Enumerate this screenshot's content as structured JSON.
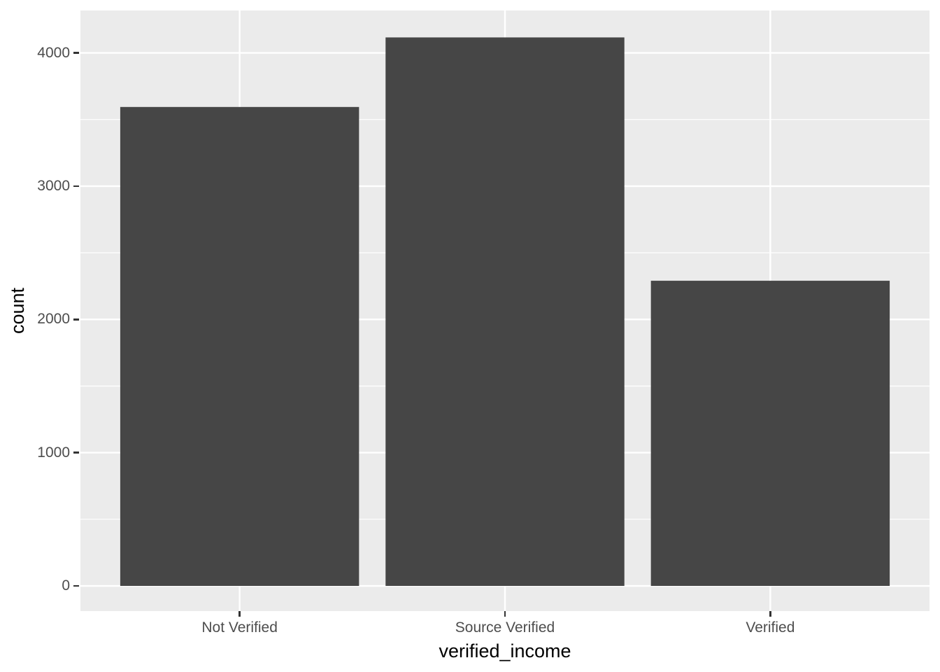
{
  "chart_data": {
    "type": "bar",
    "categories": [
      "Not Verified",
      "Source Verified",
      "Verified"
    ],
    "values": [
      3594,
      4116,
      2290
    ],
    "xlabel": "verified_income",
    "ylabel": "count",
    "y_ticks": [
      0,
      1000,
      2000,
      3000,
      4000
    ],
    "y_tick_labels": [
      "0",
      "1000",
      "2000",
      "3000",
      "4000"
    ],
    "y_minor_ticks": [
      500,
      1500,
      2500,
      3500
    ],
    "ylim": [
      -189,
      4318
    ],
    "grid": "major-and-minor",
    "legend_position": "none",
    "colors": {
      "bar_fill": "#464646",
      "panel_background": "#EBEBEB",
      "gridline": "#FFFFFF",
      "tick_label": "#4D4D4D",
      "axis_title": "#000000",
      "tick_mark": "#333333",
      "figure_background": "#FFFFFF"
    }
  }
}
